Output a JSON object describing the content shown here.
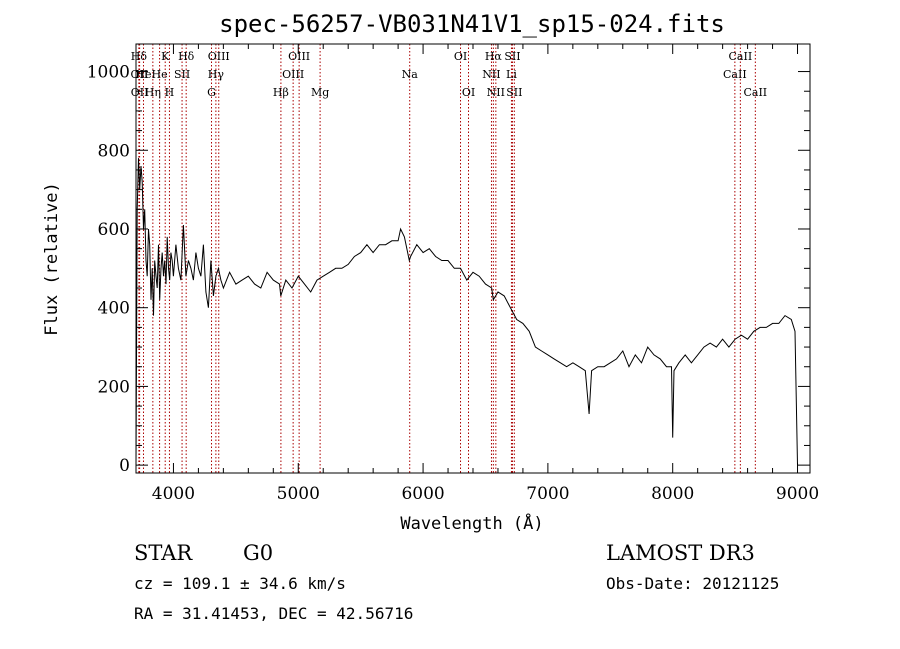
{
  "chart_data": {
    "type": "line",
    "title": "spec-56257-VB031N41V1_sp15-024.fits",
    "xlabel": "Wavelength (Å)",
    "ylabel": "Flux (relative)",
    "xlim": [
      3700,
      9100
    ],
    "ylim": [
      -20,
      1070
    ],
    "xticks": [
      4000,
      5000,
      6000,
      7000,
      8000,
      9000
    ],
    "yticks": [
      0,
      200,
      400,
      600,
      800,
      1000
    ],
    "grid": false,
    "spectrum": {
      "x": [
        3700,
        3710,
        3720,
        3730,
        3740,
        3750,
        3760,
        3770,
        3780,
        3790,
        3800,
        3810,
        3820,
        3830,
        3840,
        3850,
        3860,
        3870,
        3880,
        3890,
        3900,
        3910,
        3920,
        3930,
        3940,
        3950,
        3960,
        3970,
        3980,
        3990,
        4000,
        4020,
        4040,
        4060,
        4080,
        4100,
        4120,
        4140,
        4160,
        4180,
        4200,
        4220,
        4240,
        4260,
        4280,
        4300,
        4320,
        4340,
        4360,
        4380,
        4400,
        4450,
        4500,
        4550,
        4600,
        4650,
        4700,
        4750,
        4800,
        4850,
        4860,
        4900,
        4950,
        5000,
        5050,
        5100,
        5150,
        5200,
        5250,
        5300,
        5350,
        5400,
        5450,
        5500,
        5550,
        5600,
        5650,
        5700,
        5750,
        5800,
        5820,
        5850,
        5890,
        5900,
        5950,
        6000,
        6050,
        6100,
        6150,
        6200,
        6250,
        6300,
        6350,
        6400,
        6450,
        6500,
        6550,
        6563,
        6600,
        6650,
        6700,
        6750,
        6800,
        6850,
        6900,
        6950,
        7000,
        7050,
        7100,
        7150,
        7200,
        7250,
        7300,
        7330,
        7350,
        7400,
        7450,
        7500,
        7550,
        7600,
        7650,
        7700,
        7750,
        7800,
        7850,
        7900,
        7950,
        7990,
        8000,
        8010,
        8050,
        8100,
        8150,
        8200,
        8250,
        8300,
        8350,
        8400,
        8450,
        8500,
        8550,
        8600,
        8650,
        8700,
        8750,
        8800,
        8850,
        8900,
        8950,
        8980,
        9000
      ],
      "y": [
        0,
        650,
        780,
        700,
        760,
        720,
        600,
        650,
        520,
        480,
        600,
        560,
        420,
        500,
        380,
        520,
        480,
        450,
        560,
        420,
        500,
        540,
        480,
        520,
        460,
        580,
        500,
        470,
        540,
        520,
        480,
        560,
        500,
        470,
        610,
        480,
        520,
        500,
        470,
        540,
        500,
        480,
        560,
        440,
        400,
        520,
        430,
        480,
        500,
        470,
        450,
        490,
        460,
        470,
        480,
        460,
        450,
        490,
        470,
        460,
        430,
        470,
        450,
        480,
        460,
        440,
        470,
        480,
        490,
        500,
        500,
        510,
        530,
        540,
        560,
        540,
        560,
        560,
        570,
        570,
        600,
        580,
        520,
        530,
        560,
        540,
        550,
        530,
        520,
        520,
        500,
        500,
        470,
        490,
        480,
        460,
        450,
        420,
        440,
        430,
        400,
        370,
        360,
        340,
        300,
        290,
        280,
        270,
        260,
        250,
        260,
        250,
        240,
        130,
        240,
        250,
        250,
        260,
        270,
        290,
        250,
        280,
        260,
        300,
        280,
        270,
        250,
        250,
        70,
        240,
        260,
        280,
        260,
        280,
        300,
        310,
        300,
        320,
        300,
        320,
        330,
        320,
        340,
        350,
        350,
        360,
        360,
        380,
        370,
        340,
        0
      ]
    },
    "lines": [
      {
        "label": "Hδ",
        "x": 3723,
        "row": 0
      },
      {
        "label": "OII",
        "x": 3727,
        "row": 1
      },
      {
        "label": "OII",
        "x": 3729,
        "row": 2
      },
      {
        "label": "He",
        "x": 3760,
        "row": 1
      },
      {
        "label": "Hη",
        "x": 3835,
        "row": 2
      },
      {
        "label": "K",
        "x": 3934,
        "row": 0
      },
      {
        "label": "He",
        "x": 3889,
        "row": 1
      },
      {
        "label": "H",
        "x": 3968,
        "row": 2
      },
      {
        "label": "SII",
        "x": 4069,
        "row": 1
      },
      {
        "label": "Hδ",
        "x": 4102,
        "row": 0
      },
      {
        "label": "OIII",
        "x": 4363,
        "row": 0
      },
      {
        "label": "Hγ",
        "x": 4340,
        "row": 1
      },
      {
        "label": "G",
        "x": 4305,
        "row": 2
      },
      {
        "label": "Hβ",
        "x": 4861,
        "row": 2
      },
      {
        "label": "OIII",
        "x": 5007,
        "row": 0
      },
      {
        "label": "OIII",
        "x": 4959,
        "row": 1
      },
      {
        "label": "Mg",
        "x": 5175,
        "row": 2
      },
      {
        "label": "Na",
        "x": 5893,
        "row": 1
      },
      {
        "label": "OI",
        "x": 6300,
        "row": 0
      },
      {
        "label": "OI",
        "x": 6364,
        "row": 2
      },
      {
        "label": "Hα",
        "x": 6563,
        "row": 0
      },
      {
        "label": "SII",
        "x": 6716,
        "row": 0
      },
      {
        "label": "NII",
        "x": 6548,
        "row": 1
      },
      {
        "label": "NII",
        "x": 6583,
        "row": 2
      },
      {
        "label": "Li",
        "x": 6708,
        "row": 1
      },
      {
        "label": "SII",
        "x": 6731,
        "row": 2
      },
      {
        "label": "CaII",
        "x": 8542,
        "row": 0
      },
      {
        "label": "CaII",
        "x": 8498,
        "row": 1
      },
      {
        "label": "CaII",
        "x": 8662,
        "row": 2
      }
    ]
  },
  "footer": {
    "object_type": "STAR",
    "subclass": "G0",
    "survey": "LAMOST DR3",
    "redshift": "cz = 109.1 ± 34.6 km/s",
    "obs_date": "Obs-Date: 20121125",
    "coords": "RA =  31.41453, DEC =  42.56716"
  },
  "colors": {
    "spectrum": "#000000",
    "line_markers": "#aa0000",
    "axes": "#000000"
  }
}
